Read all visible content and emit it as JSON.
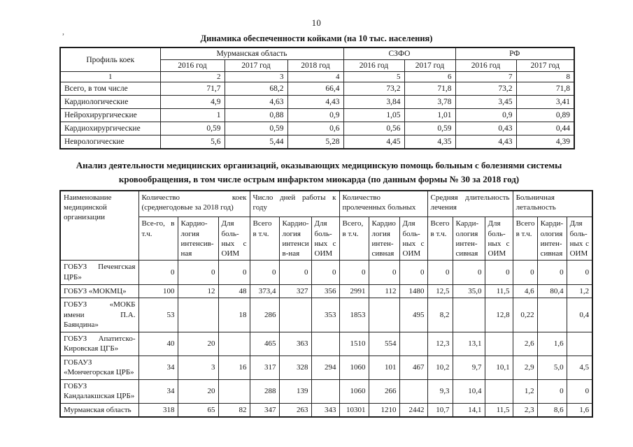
{
  "page_number": "10",
  "scan_mark": ",",
  "table1": {
    "title": "Динамика обеспеченности койками (на 10 тыс. населения)",
    "header": {
      "col1": "Профиль коек",
      "groups": [
        {
          "label": "Мурманская область",
          "years": [
            "2016 год",
            "2017 год",
            "2018 год"
          ]
        },
        {
          "label": "СЗФО",
          "years": [
            "2016 год",
            "2017 год"
          ]
        },
        {
          "label": "РФ",
          "years": [
            "2016 год",
            "2017 год"
          ]
        }
      ],
      "number_row": [
        "1",
        "2",
        "3",
        "4",
        "5",
        "6",
        "7",
        "8"
      ]
    },
    "rows": [
      {
        "label": "Всего, в том числе",
        "values": [
          "71,7",
          "68,2",
          "66,4",
          "73,2",
          "71,8",
          "73,2",
          "71,8"
        ]
      },
      {
        "label": "Кардиологические",
        "values": [
          "4,9",
          "4,63",
          "4,43",
          "3,84",
          "3,78",
          "3,45",
          "3,41"
        ]
      },
      {
        "label": "Нейрохирургические",
        "values": [
          "1",
          "0,88",
          "0,9",
          "1,05",
          "1,01",
          "0,9",
          "0,89"
        ]
      },
      {
        "label": "Кардиохирургические",
        "values": [
          "0,59",
          "0,59",
          "0,6",
          "0,56",
          "0,59",
          "0,43",
          "0,44"
        ]
      },
      {
        "label": "Неврологические",
        "values": [
          "5,6",
          "5,44",
          "5,28",
          "4,45",
          "4,35",
          "4,43",
          "4,39"
        ]
      }
    ]
  },
  "table2": {
    "title": "Анализ деятельности медицинских организаций, оказывающих медицинскую помощь больным с болезнями системы кровообращения, в том числе острым инфарктом миокарда (по данным формы № 30 за 2018 год)",
    "header": {
      "col1": "Наименование медицинской организации",
      "groups": [
        {
          "label": "Количество коек (среднегодовые за 2018 год)",
          "cols": [
            "Все-го, в т.ч.",
            "Кардио-логия интенсив-ная",
            "Для боль-ных с ОИМ"
          ]
        },
        {
          "label": "Число дней работы к году",
          "cols": [
            "Всего в т.ч.",
            "Кардио-логия интенси в-ная",
            "Для боль-ных с ОИМ"
          ]
        },
        {
          "label": "Количество пролеченных больных",
          "cols": [
            "Всего, в т.ч.",
            "Кардио логия интен-сивная",
            "Для боль-ных с ОИМ"
          ]
        },
        {
          "label": "Средняя длительность лечения",
          "cols": [
            "Всего в т.ч.",
            "Карди-ология интен-сивная",
            "Для боль-ных с ОИМ"
          ]
        },
        {
          "label": "Больничная летальность",
          "cols": [
            "Всего в т.ч.",
            "Карди-ология интен-сивная",
            "Для боль-ных с ОИМ"
          ]
        }
      ]
    },
    "rows": [
      {
        "name": "ГОБУЗ Печенгская ЦРБ»",
        "values": [
          "0",
          "0",
          "0",
          "0",
          "0",
          "0",
          "0",
          "0",
          "0",
          "0",
          "0",
          "0",
          "0",
          "0",
          "0"
        ]
      },
      {
        "name": "ГОБУЗ «МОКМЦ»",
        "values": [
          "100",
          "12",
          "48",
          "373,4",
          "327",
          "356",
          "2991",
          "112",
          "1480",
          "12,5",
          "35,0",
          "11,5",
          "4,6",
          "80,4",
          "1,2"
        ]
      },
      {
        "name": "ГОБУЗ «МОКБ имени П.А. Баяндина»",
        "values": [
          "53",
          "",
          "18",
          "286",
          "",
          "353",
          "1853",
          "",
          "495",
          "8,2",
          "",
          "12,8",
          "0,22",
          "",
          "0,4"
        ]
      },
      {
        "name": "ГОБУЗ Апатитско-Кировская ЦГБ»",
        "values": [
          "40",
          "20",
          "",
          "465",
          "363",
          "",
          "1510",
          "554",
          "",
          "12,3",
          "13,1",
          "",
          "2,6",
          "1,6",
          ""
        ]
      },
      {
        "name": "ГОБАУЗ «Мончегорская ЦРБ»",
        "values": [
          "34",
          "3",
          "16",
          "317",
          "328",
          "294",
          "1060",
          "101",
          "467",
          "10,2",
          "9,7",
          "10,1",
          "2,9",
          "5,0",
          "4,5"
        ]
      },
      {
        "name": "ГОБУЗ Кандалакшская ЦРБ»",
        "values": [
          "34",
          "20",
          "",
          "288",
          "139",
          "",
          "1060",
          "266",
          "",
          "9,3",
          "10,4",
          "",
          "1,2",
          "0",
          "0"
        ]
      },
      {
        "name": "Мурманская область",
        "values": [
          "318",
          "65",
          "82",
          "347",
          "263",
          "343",
          "10301",
          "1210",
          "2442",
          "10,7",
          "14,1",
          "11,5",
          "2,3",
          "8,6",
          "1,6"
        ]
      }
    ]
  }
}
